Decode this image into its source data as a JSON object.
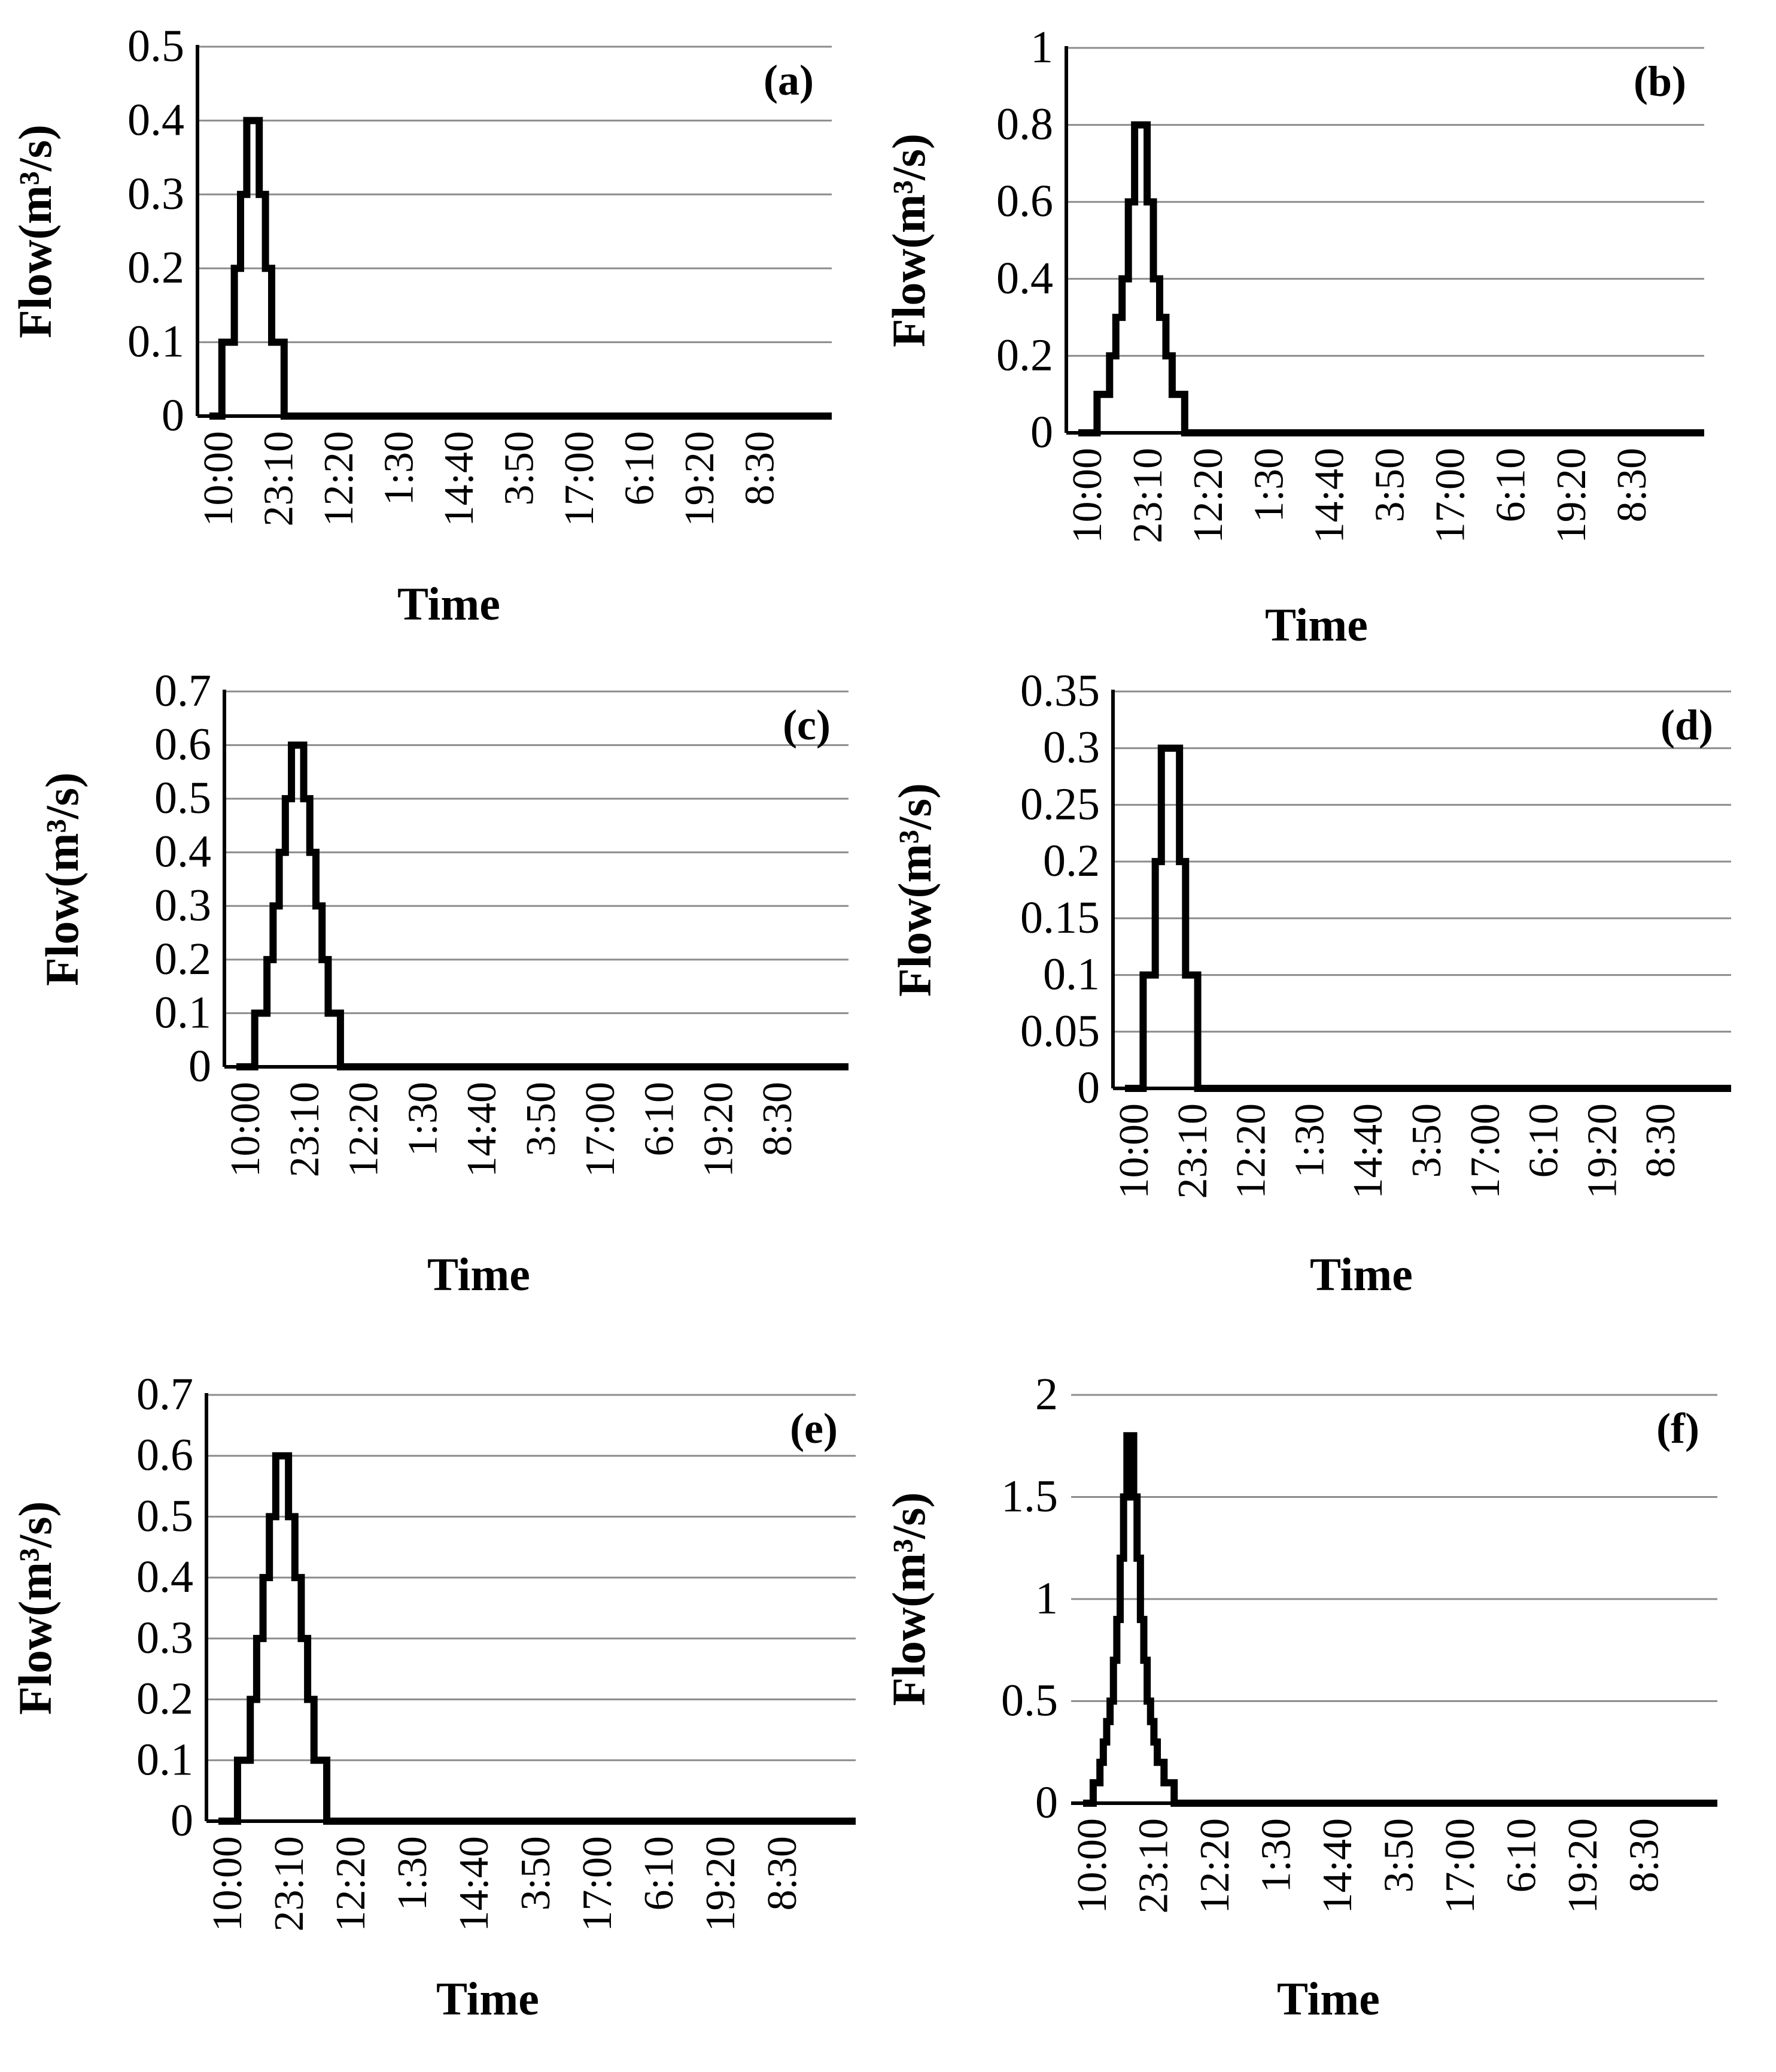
{
  "chart_data": [
    {
      "type": "line",
      "panel_label": "(a)",
      "ylabel": "Flow(m³/s)",
      "xlabel": "Time",
      "ylim": [
        0,
        0.5
      ],
      "yticks": [
        "0",
        "0.1",
        "0.2",
        "0.3",
        "0.4",
        "0.5"
      ],
      "xticks": [
        "10:00",
        "23:10",
        "12:20",
        "1:30",
        "14:40",
        "3:50",
        "17:00",
        "6:10",
        "19:20",
        "8:30"
      ],
      "grid": true,
      "series": [
        {
          "name": "Flow",
          "values": [
            0,
            0,
            0.1,
            0.1,
            0.2,
            0.3,
            0.4,
            0.4,
            0.3,
            0.2,
            0.1,
            0.1,
            0,
            0,
            0,
            0,
            0,
            0,
            0,
            0,
            0,
            0,
            0,
            0,
            0,
            0,
            0,
            0,
            0,
            0,
            0,
            0,
            0,
            0,
            0,
            0,
            0,
            0,
            0,
            0,
            0,
            0,
            0,
            0,
            0,
            0,
            0,
            0,
            0,
            0,
            0,
            0,
            0,
            0,
            0,
            0,
            0,
            0,
            0,
            0,
            0,
            0,
            0,
            0,
            0,
            0,
            0,
            0,
            0,
            0,
            0,
            0,
            0,
            0,
            0,
            0,
            0,
            0,
            0,
            0,
            0,
            0,
            0,
            0,
            0,
            0,
            0,
            0,
            0,
            0,
            0,
            0,
            0,
            0,
            0,
            0,
            0,
            0,
            0,
            0
          ]
        }
      ]
    },
    {
      "type": "line",
      "panel_label": "(b)",
      "ylabel": "Flow(m³/s)",
      "xlabel": "Time",
      "ylim": [
        0,
        1
      ],
      "yticks": [
        "0",
        "0.2",
        "0.4",
        "0.6",
        "0.8",
        "1"
      ],
      "xticks": [
        "10:00",
        "23:10",
        "12:20",
        "1:30",
        "14:40",
        "3:50",
        "17:00",
        "6:10",
        "19:20",
        "8:30"
      ],
      "grid": true,
      "series": [
        {
          "name": "Flow",
          "values": [
            0,
            0,
            0,
            0.1,
            0.1,
            0.2,
            0.3,
            0.4,
            0.6,
            0.8,
            0.8,
            0.6,
            0.4,
            0.3,
            0.2,
            0.1,
            0.1,
            0,
            0,
            0,
            0,
            0,
            0,
            0,
            0,
            0,
            0,
            0,
            0,
            0,
            0,
            0,
            0,
            0,
            0,
            0,
            0,
            0,
            0,
            0,
            0,
            0,
            0,
            0,
            0,
            0,
            0,
            0,
            0,
            0,
            0,
            0,
            0,
            0,
            0,
            0,
            0,
            0,
            0,
            0,
            0,
            0,
            0,
            0,
            0,
            0,
            0,
            0,
            0,
            0,
            0,
            0,
            0,
            0,
            0,
            0,
            0,
            0,
            0,
            0,
            0,
            0,
            0,
            0,
            0,
            0,
            0,
            0,
            0,
            0,
            0,
            0,
            0,
            0,
            0,
            0,
            0,
            0,
            0,
            0
          ]
        }
      ]
    },
    {
      "type": "line",
      "panel_label": "(c)",
      "ylabel": "Flow(m³/s)",
      "xlabel": "Time",
      "ylim": [
        0,
        0.7
      ],
      "yticks": [
        "0",
        "0.1",
        "0.2",
        "0.3",
        "0.4",
        "0.5",
        "0.6",
        "0.7"
      ],
      "xticks": [
        "10:00",
        "23:10",
        "12:20",
        "1:30",
        "14:40",
        "3:50",
        "17:00",
        "6:10",
        "19:20",
        "8:30"
      ],
      "grid": true,
      "series": [
        {
          "name": "Flow",
          "values": [
            0,
            0,
            0,
            0.1,
            0.1,
            0.2,
            0.3,
            0.4,
            0.5,
            0.6,
            0.6,
            0.5,
            0.4,
            0.3,
            0.2,
            0.1,
            0.1,
            0,
            0,
            0,
            0,
            0,
            0,
            0,
            0,
            0,
            0,
            0,
            0,
            0,
            0,
            0,
            0,
            0,
            0,
            0,
            0,
            0,
            0,
            0,
            0,
            0,
            0,
            0,
            0,
            0,
            0,
            0,
            0,
            0,
            0,
            0,
            0,
            0,
            0,
            0,
            0,
            0,
            0,
            0,
            0,
            0,
            0,
            0,
            0,
            0,
            0,
            0,
            0,
            0,
            0,
            0,
            0,
            0,
            0,
            0,
            0,
            0,
            0,
            0,
            0,
            0,
            0,
            0,
            0,
            0,
            0,
            0,
            0,
            0,
            0,
            0,
            0,
            0,
            0,
            0,
            0,
            0,
            0,
            0
          ]
        }
      ]
    },
    {
      "type": "line",
      "panel_label": "(d)",
      "ylabel": "Flow(m³/s)",
      "xlabel": "Time",
      "ylim": [
        0,
        0.35
      ],
      "yticks": [
        "0",
        "0.05",
        "0.1",
        "0.15",
        "0.2",
        "0.25",
        "0.3",
        "0.35"
      ],
      "xticks": [
        "10:00",
        "23:10",
        "12:20",
        "1:30",
        "14:40",
        "3:50",
        "17:00",
        "6:10",
        "19:20",
        "8:30"
      ],
      "grid": true,
      "series": [
        {
          "name": "Flow",
          "values": [
            0,
            0,
            0,
            0.1,
            0.1,
            0.2,
            0.3,
            0.3,
            0.3,
            0.2,
            0.1,
            0.1,
            0,
            0,
            0,
            0,
            0,
            0,
            0,
            0,
            0,
            0,
            0,
            0,
            0,
            0,
            0,
            0,
            0,
            0,
            0,
            0,
            0,
            0,
            0,
            0,
            0,
            0,
            0,
            0,
            0,
            0,
            0,
            0,
            0,
            0,
            0,
            0,
            0,
            0,
            0,
            0,
            0,
            0,
            0,
            0,
            0,
            0,
            0,
            0,
            0,
            0,
            0,
            0,
            0,
            0,
            0,
            0,
            0,
            0,
            0,
            0,
            0,
            0,
            0,
            0,
            0,
            0,
            0,
            0,
            0,
            0,
            0,
            0,
            0,
            0,
            0,
            0,
            0,
            0,
            0,
            0,
            0,
            0,
            0,
            0,
            0,
            0,
            0,
            0
          ]
        }
      ]
    },
    {
      "type": "line",
      "panel_label": "(e)",
      "ylabel": "Flow(m³/s)",
      "xlabel": "Time",
      "ylim": [
        0,
        0.7
      ],
      "yticks": [
        "0",
        "0.1",
        "0.2",
        "0.3",
        "0.4",
        "0.5",
        "0.6",
        "0.7"
      ],
      "xticks": [
        "10:00",
        "23:10",
        "12:20",
        "1:30",
        "14:40",
        "3:50",
        "17:00",
        "6:10",
        "19:20",
        "8:30"
      ],
      "grid": true,
      "series": [
        {
          "name": "Flow",
          "values": [
            0,
            0,
            0,
            0.1,
            0.1,
            0.2,
            0.3,
            0.4,
            0.5,
            0.6,
            0.6,
            0.5,
            0.4,
            0.3,
            0.2,
            0.1,
            0.1,
            0,
            0,
            0,
            0,
            0,
            0,
            0,
            0,
            0,
            0,
            0,
            0,
            0,
            0,
            0,
            0,
            0,
            0,
            0,
            0,
            0,
            0,
            0,
            0,
            0,
            0,
            0,
            0,
            0,
            0,
            0,
            0,
            0,
            0,
            0,
            0,
            0,
            0,
            0,
            0,
            0,
            0,
            0,
            0,
            0,
            0,
            0,
            0,
            0,
            0,
            0,
            0,
            0,
            0,
            0,
            0,
            0,
            0,
            0,
            0,
            0,
            0,
            0,
            0,
            0,
            0,
            0,
            0,
            0,
            0,
            0,
            0,
            0,
            0,
            0,
            0,
            0,
            0,
            0,
            0,
            0,
            0,
            0
          ]
        }
      ]
    },
    {
      "type": "line",
      "panel_label": "(f)",
      "ylabel": "Flow(m³/s)",
      "xlabel": "Time",
      "ylim": [
        0,
        2
      ],
      "yticks": [
        "0",
        "0.5",
        "1",
        "1.5",
        "2"
      ],
      "xticks": [
        "10:00",
        "23:10",
        "12:20",
        "1:30",
        "14:40",
        "3:50",
        "17:00",
        "6:10",
        "19:20",
        "8:30"
      ],
      "grid": true,
      "series": [
        {
          "name": "Flow",
          "values": [
            0,
            0,
            0,
            0.1,
            0.1,
            0.2,
            0.3,
            0.4,
            0.5,
            0.7,
            0.9,
            1.2,
            1.5,
            1.8,
            1.8,
            1.5,
            1.2,
            0.9,
            0.7,
            0.5,
            0.4,
            0.3,
            0.2,
            0.2,
            0.1,
            0.1,
            0.1,
            0,
            0,
            0,
            0,
            0,
            0,
            0,
            0,
            0,
            0,
            0,
            0,
            0,
            0,
            0,
            0,
            0,
            0,
            0,
            0,
            0,
            0,
            0,
            0,
            0,
            0,
            0,
            0,
            0,
            0,
            0,
            0,
            0,
            0,
            0,
            0,
            0,
            0,
            0,
            0,
            0,
            0,
            0,
            0,
            0,
            0,
            0,
            0,
            0,
            0,
            0,
            0,
            0,
            0,
            0,
            0,
            0,
            0,
            0,
            0,
            0,
            0,
            0,
            0,
            0,
            0,
            0,
            0,
            0,
            0,
            0,
            0,
            0,
            0,
            0,
            0,
            0,
            0,
            0,
            0,
            0,
            0,
            0,
            0,
            0,
            0,
            0,
            0,
            0,
            0,
            0,
            0,
            0,
            0,
            0,
            0,
            0,
            0,
            0,
            0,
            0,
            0,
            0,
            0,
            0,
            0,
            0,
            0,
            0,
            0,
            0,
            0,
            0,
            0,
            0,
            0,
            0,
            0,
            0,
            0,
            0,
            0,
            0,
            0,
            0,
            0,
            0,
            0,
            0,
            0,
            0,
            0,
            0,
            0,
            0,
            0,
            0,
            0,
            0,
            0,
            0,
            0,
            0,
            0,
            0,
            0,
            0,
            0,
            0,
            0,
            0,
            0,
            0,
            0,
            0,
            0,
            0,
            0,
            0,
            0,
            0
          ]
        }
      ]
    }
  ]
}
